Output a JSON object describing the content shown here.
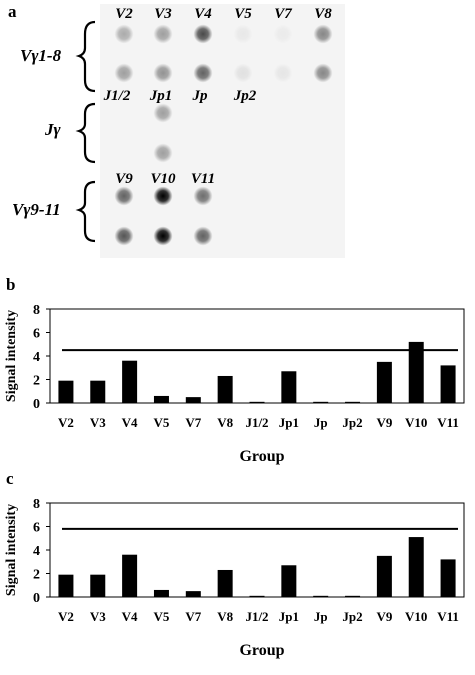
{
  "panels": {
    "a": "a",
    "b": "b",
    "c": "c"
  },
  "blot": {
    "group_labels": [
      "Vγ1-8",
      "Jγ",
      "Vγ9-11"
    ],
    "rows": [
      {
        "labels": [
          "V2",
          "V3",
          "V4",
          "V5",
          "V7",
          "V8"
        ],
        "labels_position": "above",
        "intensities": [
          [
            0.3,
            0.35,
            0.7,
            0.05,
            0.04,
            0.45
          ],
          [
            0.35,
            0.4,
            0.6,
            0.08,
            0.06,
            0.45
          ]
        ]
      },
      {
        "labels": [
          "J1/2",
          "Jp1",
          "Jp",
          "Jp2"
        ],
        "labels_position": "above",
        "intensities": [
          [
            0.0,
            0.35,
            0.0,
            0.0
          ],
          [
            0.0,
            0.35,
            0.0,
            0.0
          ]
        ]
      },
      {
        "labels": [
          "V9",
          "V10",
          "V11"
        ],
        "labels_position": "above",
        "intensities": [
          [
            0.6,
            1.0,
            0.55
          ],
          [
            0.65,
            1.0,
            0.6
          ]
        ]
      }
    ]
  },
  "chart_data": [
    {
      "type": "bar",
      "categories": [
        "V2",
        "V3",
        "V4",
        "V5",
        "V7",
        "V8",
        "J1/2",
        "Jp1",
        "Jp",
        "Jp2",
        "V9",
        "V10",
        "V11"
      ],
      "values": [
        1.9,
        1.9,
        3.6,
        0.6,
        0.5,
        2.3,
        0.1,
        2.7,
        0.1,
        0.1,
        3.5,
        5.2,
        3.2
      ],
      "threshold": 4.5,
      "xlabel": "Group",
      "ylabel": "Signal intensity",
      "ylim": [
        0,
        8
      ],
      "yticks": [
        0,
        2,
        4,
        6,
        8
      ],
      "colors": {
        "bar": "#000000",
        "line": "#000000"
      }
    },
    {
      "type": "bar",
      "categories": [
        "V2",
        "V3",
        "V4",
        "V5",
        "V7",
        "V8",
        "J1/2",
        "Jp1",
        "Jp",
        "Jp2",
        "V9",
        "V10",
        "V11"
      ],
      "values": [
        1.9,
        1.9,
        3.6,
        0.6,
        0.5,
        2.3,
        0.1,
        2.7,
        0.1,
        0.1,
        3.5,
        5.1,
        3.2
      ],
      "threshold": 5.8,
      "xlabel": "Group",
      "ylabel": "Signal intensity",
      "ylim": [
        0,
        8
      ],
      "yticks": [
        0,
        2,
        4,
        6,
        8
      ],
      "colors": {
        "bar": "#000000",
        "line": "#000000"
      }
    }
  ]
}
